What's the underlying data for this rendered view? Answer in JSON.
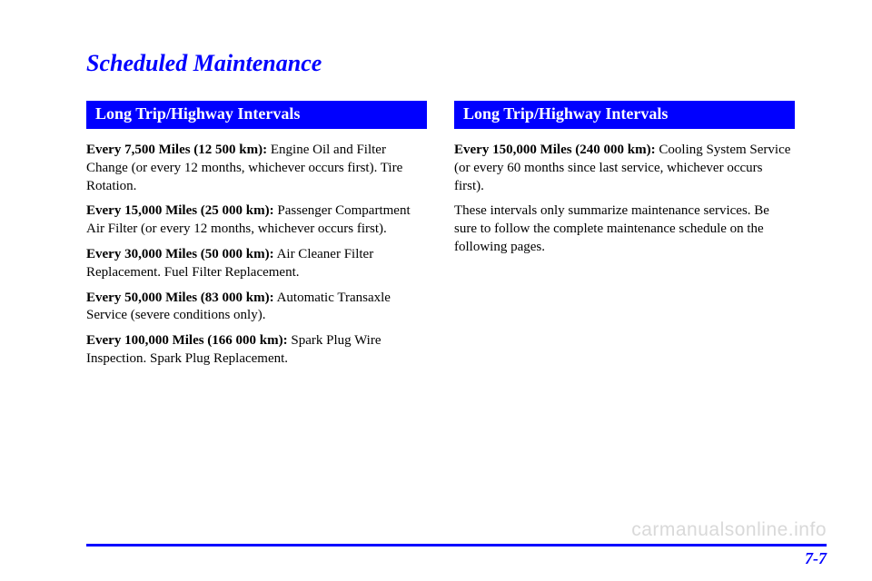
{
  "title": "Scheduled Maintenance",
  "left": {
    "header": "Long Trip/Highway Intervals",
    "items": [
      {
        "label": "Every 7,500 Miles (12 500 km):",
        "text": " Engine Oil and Filter Change (or every 12 months, whichever occurs first). Tire Rotation."
      },
      {
        "label": "Every 15,000 Miles (25 000 km):",
        "text": " Passenger Compartment Air Filter (or every 12 months, whichever occurs first)."
      },
      {
        "label": "Every 30,000 Miles (50 000 km):",
        "text": " Air Cleaner Filter Replacement. Fuel Filter Replacement."
      },
      {
        "label": "Every 50,000 Miles (83 000 km):",
        "text": " Automatic Transaxle Service (severe conditions only)."
      },
      {
        "label": "Every 100,000 Miles (166 000 km):",
        "text": " Spark Plug Wire Inspection. Spark Plug Replacement."
      }
    ]
  },
  "right": {
    "header": "Long Trip/Highway Intervals",
    "items": [
      {
        "label": "Every 150,000 Miles (240 000 km):",
        "text": " Cooling System Service (or every 60 months since last service, whichever occurs first)."
      }
    ],
    "note": "These intervals only summarize maintenance services. Be sure to follow the complete maintenance schedule on the following pages."
  },
  "pageNumber": "7-7",
  "watermark": "carmanualsonline.info"
}
